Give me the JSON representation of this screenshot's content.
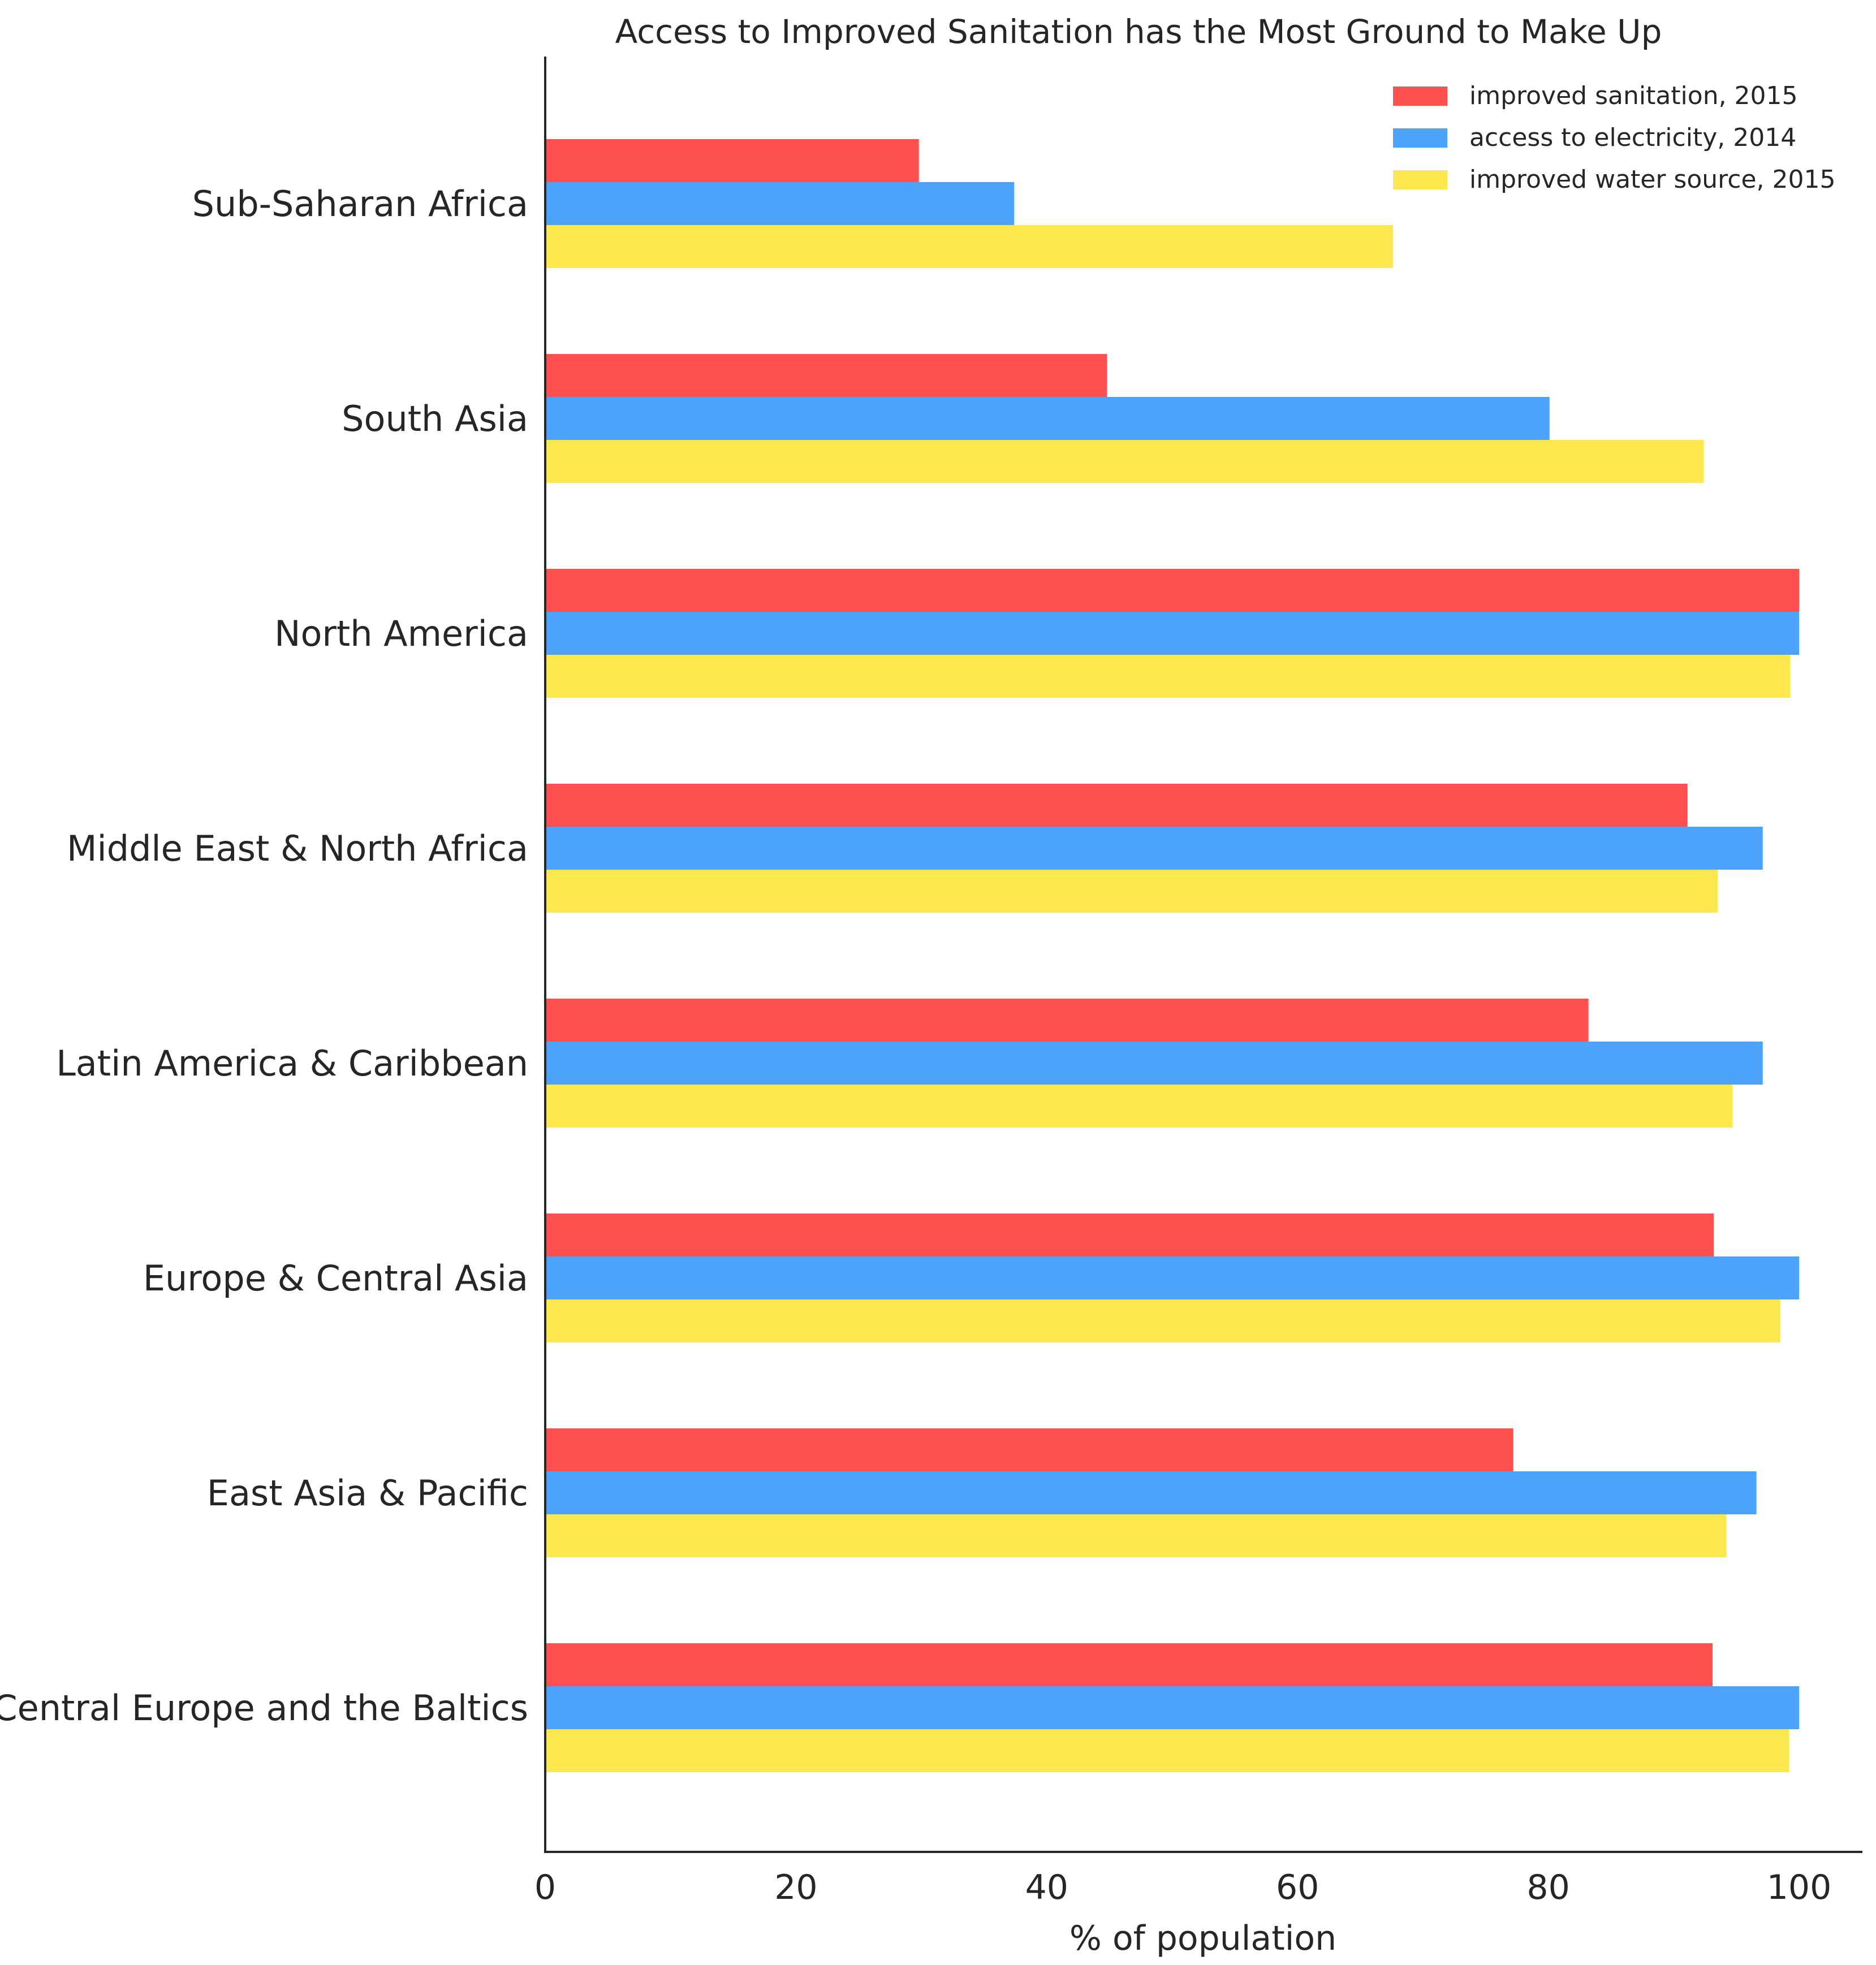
{
  "chart_data": {
    "type": "bar",
    "orientation": "horizontal",
    "title": "Access to Improved Sanitation has the Most Ground to Make Up",
    "xlabel": "% of population",
    "ylabel": "",
    "xlim": [
      0,
      105
    ],
    "xticks": [
      0,
      20,
      40,
      60,
      80,
      100
    ],
    "grid": false,
    "legend_position": "top-right",
    "categories": [
      "Sub-Saharan Africa",
      "South Asia",
      "North America",
      "Middle East & North Africa",
      "Latin America & Caribbean",
      "Europe & Central Asia",
      "East Asia & Pacific",
      "Central Europe and the Baltics"
    ],
    "series": [
      {
        "name": "improved sanitation, 2015",
        "color": "#ff5050",
        "values": [
          29.8,
          44.8,
          100.0,
          91.1,
          83.2,
          93.2,
          77.2,
          93.1
        ]
      },
      {
        "name": "access to electricity, 2014",
        "color": "#4da3fb",
        "values": [
          37.4,
          80.1,
          100.0,
          97.1,
          97.1,
          100.0,
          96.6,
          100.0
        ]
      },
      {
        "name": "improved water source, 2015",
        "color": "#fce74e",
        "values": [
          67.6,
          92.4,
          99.3,
          93.5,
          94.7,
          98.5,
          94.2,
          99.2
        ]
      }
    ]
  }
}
